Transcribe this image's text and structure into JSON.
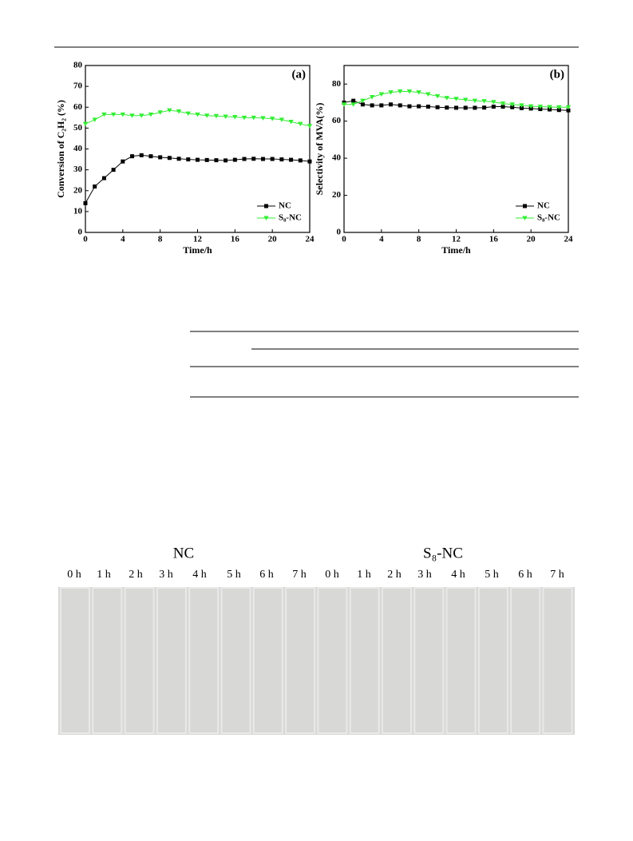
{
  "chart_data": [
    {
      "type": "line",
      "panel_label": "(a)",
      "x_label": "Time/h",
      "y_label": "Conversion of C₂H₂ (%)",
      "x": [
        0,
        1,
        2,
        3,
        4,
        5,
        6,
        7,
        8,
        9,
        10,
        11,
        12,
        13,
        14,
        15,
        16,
        17,
        18,
        19,
        20,
        21,
        22,
        23,
        24
      ],
      "xlim": [
        0,
        24
      ],
      "xticks": [
        0,
        4,
        8,
        12,
        16,
        20,
        24
      ],
      "ylim": [
        0,
        80
      ],
      "yticks": [
        0,
        10,
        20,
        30,
        40,
        50,
        60,
        70,
        80
      ],
      "legend": "bottom-right",
      "series": [
        {
          "name": "NC",
          "color": "#000000",
          "marker": "square",
          "values": [
            14,
            22,
            26,
            30,
            34,
            36.5,
            37,
            36.5,
            36,
            35.7,
            35.3,
            35,
            34.8,
            34.7,
            34.6,
            34.5,
            34.8,
            35.2,
            35.3,
            35.2,
            35.2,
            35,
            34.8,
            34.5,
            34
          ]
        },
        {
          "name": "S₈-NC",
          "color": "#33ee33",
          "marker": "triangle-down",
          "values": [
            52,
            54,
            56.5,
            56.5,
            56.5,
            56,
            56,
            56.5,
            57.5,
            58.5,
            58,
            57,
            56.5,
            56,
            55.8,
            55.5,
            55.3,
            55,
            55,
            54.8,
            54.5,
            54,
            53,
            52,
            51
          ]
        }
      ]
    },
    {
      "type": "line",
      "panel_label": "(b)",
      "x_label": "Time/h",
      "y_label": "Selectivity of MVA(%)",
      "x": [
        0,
        1,
        2,
        3,
        4,
        5,
        6,
        7,
        8,
        9,
        10,
        11,
        12,
        13,
        14,
        15,
        16,
        17,
        18,
        19,
        20,
        21,
        22,
        23,
        24
      ],
      "xlim": [
        0,
        24
      ],
      "xticks": [
        0,
        4,
        8,
        12,
        16,
        20,
        24
      ],
      "ylim": [
        0,
        90
      ],
      "yticks": [
        0,
        20,
        40,
        60,
        80
      ],
      "legend": "bottom-right",
      "series": [
        {
          "name": "NC",
          "color": "#000000",
          "marker": "square",
          "values": [
            70,
            71,
            69,
            68.5,
            68.5,
            69,
            68.5,
            68,
            68,
            67.8,
            67.5,
            67.3,
            67.2,
            67.2,
            67.2,
            67.3,
            67.8,
            67.8,
            67.5,
            67,
            66.8,
            66.5,
            66.3,
            66,
            65.8
          ]
        },
        {
          "name": "S₈-NC",
          "color": "#33ee33",
          "marker": "triangle-down",
          "values": [
            69,
            69,
            71,
            73,
            74.5,
            75.5,
            76,
            76,
            75.5,
            74.5,
            73.5,
            72.5,
            72,
            71.5,
            71,
            70.8,
            70.3,
            69.5,
            69,
            68.5,
            68,
            67.8,
            67.6,
            67.5,
            67.5
          ]
        }
      ]
    }
  ],
  "photo": {
    "groups": [
      {
        "label": "NC",
        "times": [
          "0 h",
          "1 h",
          "2 h",
          "3 h",
          "4 h",
          "5 h",
          "6 h",
          "7 h"
        ]
      },
      {
        "label": "S₈-NC",
        "times": [
          "0 h",
          "1 h",
          "2 h",
          "3 h",
          "4 h",
          "5 h",
          "6 h",
          "7 h"
        ]
      }
    ]
  }
}
